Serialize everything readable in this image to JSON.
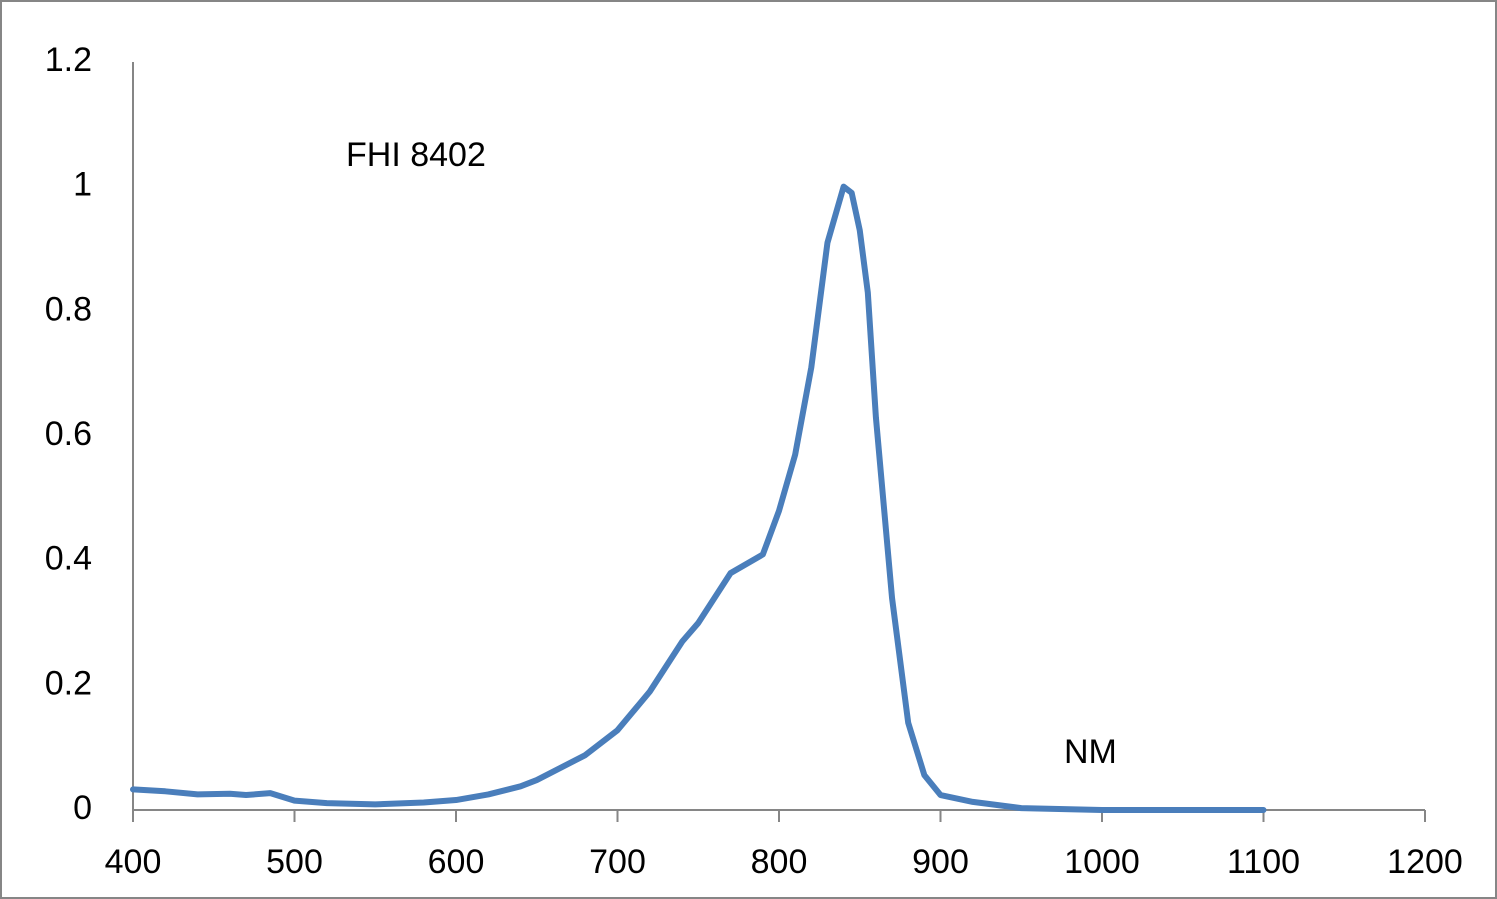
{
  "chart_data": {
    "type": "line",
    "annotations": [
      "FHI 8402",
      "NM"
    ],
    "x": [
      400,
      420,
      440,
      460,
      470,
      485,
      500,
      520,
      550,
      580,
      600,
      620,
      640,
      650,
      680,
      700,
      720,
      740,
      750,
      770,
      790,
      800,
      810,
      820,
      830,
      840,
      845,
      850,
      855,
      860,
      870,
      880,
      890,
      900,
      920,
      950,
      1000,
      1050,
      1100
    ],
    "series": [
      {
        "name": "FHI 8402",
        "color": "#4a7ebb",
        "values": [
          0.033,
          0.03,
          0.025,
          0.026,
          0.024,
          0.027,
          0.015,
          0.011,
          0.009,
          0.012,
          0.016,
          0.025,
          0.038,
          0.048,
          0.088,
          0.128,
          0.19,
          0.27,
          0.3,
          0.38,
          0.41,
          0.48,
          0.57,
          0.71,
          0.91,
          1.0,
          0.99,
          0.93,
          0.83,
          0.63,
          0.34,
          0.14,
          0.056,
          0.024,
          0.013,
          0.003,
          0.0,
          0.0,
          0.0
        ]
      }
    ],
    "xlim": [
      400,
      1200
    ],
    "xticks": [
      400,
      500,
      600,
      700,
      800,
      900,
      1000,
      1100,
      1200
    ],
    "ylim": [
      0,
      1.2
    ],
    "yticks": [
      0,
      0.2,
      0.4,
      0.6,
      0.8,
      1,
      1.2
    ],
    "grid": false
  }
}
